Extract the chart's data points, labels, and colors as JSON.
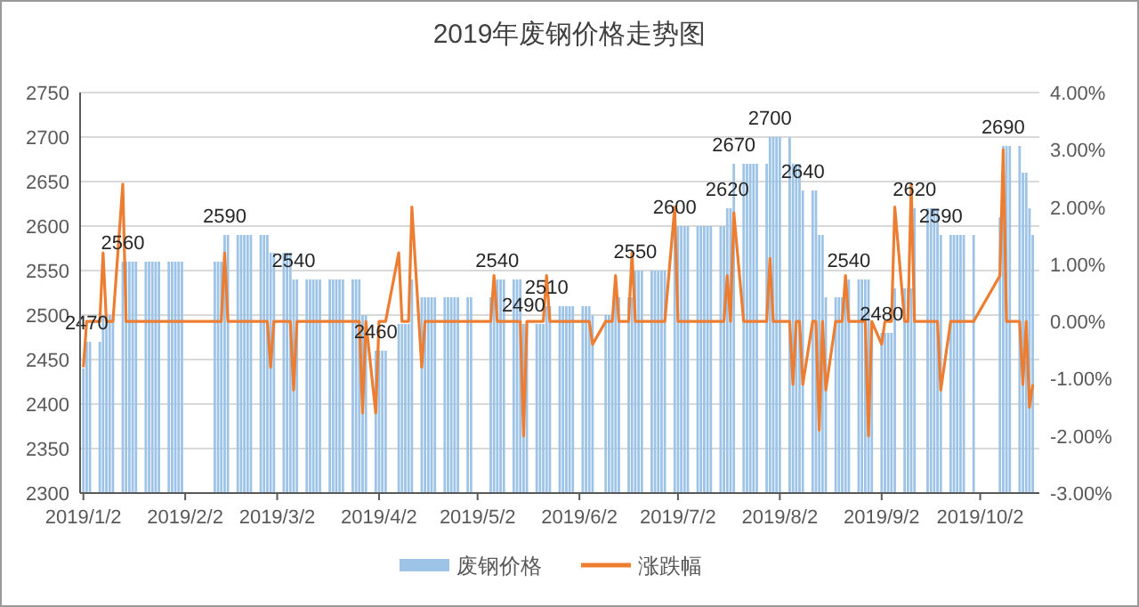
{
  "chart_data": {
    "type": "bar",
    "title": "2019年废钢价格走势图",
    "x": [
      "2019-01-02",
      "2019-01-03",
      "2019-01-04",
      "2019-01-07",
      "2019-01-08",
      "2019-01-09",
      "2019-01-10",
      "2019-01-11",
      "2019-01-14",
      "2019-01-15",
      "2019-01-16",
      "2019-01-17",
      "2019-01-18",
      "2019-01-21",
      "2019-01-22",
      "2019-01-23",
      "2019-01-24",
      "2019-01-25",
      "2019-01-28",
      "2019-01-29",
      "2019-01-30",
      "2019-01-31",
      "2019-02-01",
      "2019-02-11",
      "2019-02-12",
      "2019-02-13",
      "2019-02-14",
      "2019-02-15",
      "2019-02-18",
      "2019-02-19",
      "2019-02-20",
      "2019-02-21",
      "2019-02-22",
      "2019-02-25",
      "2019-02-26",
      "2019-02-27",
      "2019-02-28",
      "2019-03-01",
      "2019-03-04",
      "2019-03-05",
      "2019-03-06",
      "2019-03-07",
      "2019-03-08",
      "2019-03-11",
      "2019-03-12",
      "2019-03-13",
      "2019-03-14",
      "2019-03-15",
      "2019-03-18",
      "2019-03-19",
      "2019-03-20",
      "2019-03-21",
      "2019-03-22",
      "2019-03-25",
      "2019-03-26",
      "2019-03-27",
      "2019-03-28",
      "2019-03-29",
      "2019-04-01",
      "2019-04-02",
      "2019-04-03",
      "2019-04-04",
      "2019-04-08",
      "2019-04-09",
      "2019-04-10",
      "2019-04-11",
      "2019-04-12",
      "2019-04-15",
      "2019-04-16",
      "2019-04-17",
      "2019-04-18",
      "2019-04-19",
      "2019-04-22",
      "2019-04-23",
      "2019-04-24",
      "2019-04-25",
      "2019-04-26",
      "2019-04-29",
      "2019-04-30",
      "2019-05-06",
      "2019-05-07",
      "2019-05-08",
      "2019-05-09",
      "2019-05-10",
      "2019-05-13",
      "2019-05-14",
      "2019-05-15",
      "2019-05-16",
      "2019-05-17",
      "2019-05-20",
      "2019-05-21",
      "2019-05-22",
      "2019-05-23",
      "2019-05-24",
      "2019-05-27",
      "2019-05-28",
      "2019-05-29",
      "2019-05-30",
      "2019-05-31",
      "2019-06-03",
      "2019-06-04",
      "2019-06-05",
      "2019-06-06",
      "2019-06-10",
      "2019-06-11",
      "2019-06-12",
      "2019-06-13",
      "2019-06-14",
      "2019-06-17",
      "2019-06-18",
      "2019-06-19",
      "2019-06-20",
      "2019-06-21",
      "2019-06-24",
      "2019-06-25",
      "2019-06-26",
      "2019-06-27",
      "2019-06-28",
      "2019-07-01",
      "2019-07-02",
      "2019-07-03",
      "2019-07-04",
      "2019-07-05",
      "2019-07-08",
      "2019-07-09",
      "2019-07-10",
      "2019-07-11",
      "2019-07-12",
      "2019-07-15",
      "2019-07-16",
      "2019-07-17",
      "2019-07-18",
      "2019-07-19",
      "2019-07-22",
      "2019-07-23",
      "2019-07-24",
      "2019-07-25",
      "2019-07-26",
      "2019-07-29",
      "2019-07-30",
      "2019-07-31",
      "2019-08-01",
      "2019-08-02",
      "2019-08-05",
      "2019-08-06",
      "2019-08-07",
      "2019-08-08",
      "2019-08-09",
      "2019-08-12",
      "2019-08-13",
      "2019-08-14",
      "2019-08-15",
      "2019-08-16",
      "2019-08-19",
      "2019-08-20",
      "2019-08-21",
      "2019-08-22",
      "2019-08-23",
      "2019-08-26",
      "2019-08-27",
      "2019-08-28",
      "2019-08-29",
      "2019-08-30",
      "2019-09-02",
      "2019-09-03",
      "2019-09-04",
      "2019-09-05",
      "2019-09-06",
      "2019-09-09",
      "2019-09-10",
      "2019-09-11",
      "2019-09-12",
      "2019-09-16",
      "2019-09-17",
      "2019-09-18",
      "2019-09-19",
      "2019-09-20",
      "2019-09-23",
      "2019-09-24",
      "2019-09-25",
      "2019-09-26",
      "2019-09-27",
      "2019-09-30",
      "2019-10-08",
      "2019-10-09",
      "2019-10-10",
      "2019-10-11",
      "2019-10-14",
      "2019-10-15",
      "2019-10-16",
      "2019-10-17",
      "2019-10-18"
    ],
    "series": [
      {
        "name": "废钢价格",
        "type": "bar",
        "color": "#9dc3e6",
        "values": [
          2440,
          2470,
          2470,
          2470,
          2500,
          2500,
          2500,
          2500,
          2560,
          2560,
          2560,
          2560,
          2560,
          2560,
          2560,
          2560,
          2560,
          2560,
          2560,
          2560,
          2560,
          2560,
          2560,
          2560,
          2560,
          2560,
          2590,
          2590,
          2590,
          2590,
          2590,
          2590,
          2590,
          2590,
          2590,
          2590,
          2570,
          2570,
          2570,
          2570,
          2570,
          2540,
          2540,
          2540,
          2540,
          2540,
          2540,
          2540,
          2540,
          2540,
          2540,
          2540,
          2540,
          2540,
          2540,
          2540,
          2500,
          2500,
          2460,
          2460,
          2460,
          2460,
          2490,
          2490,
          2490,
          2490,
          2540,
          2520,
          2520,
          2520,
          2520,
          2520,
          2520,
          2520,
          2520,
          2520,
          2520,
          2520,
          2520,
          2520,
          2520,
          2540,
          2540,
          2540,
          2540,
          2540,
          2540,
          2490,
          2490,
          2490,
          2490,
          2490,
          2510,
          2510,
          2510,
          2510,
          2510,
          2510,
          2510,
          2510,
          2510,
          2510,
          2500,
          2500,
          2500,
          2500,
          2520,
          2520,
          2520,
          2520,
          2550,
          2550,
          2550,
          2550,
          2550,
          2550,
          2550,
          2550,
          2600,
          2600,
          2600,
          2600,
          2600,
          2600,
          2600,
          2600,
          2600,
          2600,
          2600,
          2600,
          2620,
          2620,
          2670,
          2670,
          2670,
          2670,
          2670,
          2670,
          2670,
          2700,
          2700,
          2700,
          2700,
          2700,
          2670,
          2670,
          2670,
          2640,
          2640,
          2640,
          2590,
          2590,
          2520,
          2520,
          2520,
          2520,
          2520,
          2540,
          2540,
          2540,
          2540,
          2540,
          2490,
          2480,
          2480,
          2480,
          2480,
          2530,
          2530,
          2530,
          2530,
          2620,
          2620,
          2620,
          2620,
          2620,
          2590,
          2590,
          2590,
          2590,
          2590,
          2590,
          2590,
          2610,
          2690,
          2690,
          2690,
          2690,
          2660,
          2660,
          2620,
          2590
        ],
        "value_labels": [
          null,
          "2470",
          null,
          null,
          null,
          null,
          null,
          null,
          "2560",
          null,
          null,
          null,
          null,
          null,
          null,
          null,
          null,
          null,
          null,
          null,
          null,
          null,
          null,
          null,
          null,
          null,
          "2590",
          null,
          null,
          null,
          null,
          null,
          null,
          null,
          null,
          null,
          null,
          null,
          null,
          null,
          null,
          "2540",
          null,
          null,
          null,
          null,
          null,
          null,
          null,
          null,
          null,
          null,
          null,
          null,
          null,
          null,
          null,
          null,
          "2460",
          null,
          null,
          null,
          null,
          null,
          null,
          null,
          null,
          null,
          null,
          null,
          null,
          null,
          null,
          null,
          null,
          null,
          null,
          null,
          null,
          null,
          null,
          "2540",
          null,
          null,
          null,
          null,
          null,
          "2490",
          null,
          null,
          null,
          null,
          "2510",
          null,
          null,
          null,
          null,
          null,
          null,
          null,
          null,
          null,
          null,
          null,
          null,
          null,
          null,
          null,
          null,
          null,
          "2550",
          null,
          null,
          null,
          null,
          null,
          null,
          null,
          "2600",
          null,
          null,
          null,
          null,
          null,
          null,
          null,
          null,
          null,
          null,
          null,
          "2620",
          null,
          "2670",
          null,
          null,
          null,
          null,
          null,
          null,
          "2700",
          null,
          null,
          null,
          null,
          null,
          null,
          null,
          "2640",
          null,
          null,
          null,
          null,
          null,
          null,
          null,
          null,
          null,
          "2540",
          null,
          null,
          null,
          null,
          null,
          "2480",
          null,
          null,
          null,
          null,
          null,
          null,
          null,
          "2620",
          null,
          null,
          null,
          null,
          "2590",
          null,
          null,
          null,
          null,
          null,
          null,
          null,
          "2690",
          null,
          null,
          null,
          null,
          null,
          null,
          null
        ]
      },
      {
        "name": "涨跌幅",
        "type": "line",
        "axis": "y2",
        "color": "#ed7d31",
        "values": [
          -0.8,
          0,
          0,
          0,
          1.2,
          0,
          0,
          0,
          2.4,
          0,
          0,
          0,
          0,
          0,
          0,
          0,
          0,
          0,
          0,
          0,
          0,
          0,
          0,
          0,
          0,
          0,
          1.2,
          0,
          0,
          0,
          0,
          0,
          0,
          0,
          0,
          0,
          -0.8,
          0,
          0,
          0,
          0,
          -1.2,
          0,
          0,
          0,
          0,
          0,
          0,
          0,
          0,
          0,
          0,
          0,
          0,
          0,
          0,
          -1.6,
          0,
          -1.6,
          0,
          0,
          0,
          1.2,
          0,
          0,
          0,
          2.0,
          -0.8,
          0,
          0,
          0,
          0,
          0,
          0,
          0,
          0,
          0,
          0,
          0,
          0,
          0.8,
          0,
          0,
          0,
          0,
          0,
          0,
          -2.0,
          0,
          0,
          0,
          0,
          0.8,
          0,
          0,
          0,
          0,
          0,
          0,
          0,
          0,
          0,
          -0.4,
          0,
          0,
          0,
          0.8,
          0,
          0,
          1.2,
          0,
          0,
          0,
          0,
          0,
          0,
          0,
          0,
          2.0,
          0,
          0,
          0,
          0,
          0,
          0,
          0,
          0,
          0,
          0,
          0,
          0.8,
          0,
          1.9,
          0,
          0,
          0,
          0,
          0,
          0,
          1.1,
          0,
          0,
          0,
          0,
          -1.1,
          0,
          0,
          -1.1,
          0,
          0,
          -1.9,
          0,
          -1.2,
          0,
          0,
          0,
          0.8,
          0,
          0,
          0,
          0,
          -2.0,
          0,
          -0.4,
          0,
          0,
          0,
          2.0,
          0,
          0,
          2.4,
          0,
          0,
          0,
          0,
          0,
          -1.2,
          0,
          0,
          0,
          0,
          0,
          0,
          0.8,
          3.0,
          0,
          0,
          0,
          -1.1,
          0,
          -1.5,
          -1.1
        ]
      }
    ],
    "xlim": [
      "2019-01-01",
      "2019-10-20"
    ],
    "xticks": [
      {
        "value": "2019-01-02",
        "label": "2019/1/2"
      },
      {
        "value": "2019-02-02",
        "label": "2019/2/2"
      },
      {
        "value": "2019-03-02",
        "label": "2019/3/2"
      },
      {
        "value": "2019-04-02",
        "label": "2019/4/2"
      },
      {
        "value": "2019-05-02",
        "label": "2019/5/2"
      },
      {
        "value": "2019-06-02",
        "label": "2019/6/2"
      },
      {
        "value": "2019-07-02",
        "label": "2019/7/2"
      },
      {
        "value": "2019-08-02",
        "label": "2019/8/2"
      },
      {
        "value": "2019-09-02",
        "label": "2019/9/2"
      },
      {
        "value": "2019-10-02",
        "label": "2019/10/2"
      }
    ],
    "ylim": [
      2300,
      2750
    ],
    "yticks": [
      2300,
      2350,
      2400,
      2450,
      2500,
      2550,
      2600,
      2650,
      2700,
      2750
    ],
    "y2lim": [
      -3,
      4
    ],
    "y2ticks": [
      {
        "value": -3,
        "label": "-3.00%"
      },
      {
        "value": -2,
        "label": "-2.00%"
      },
      {
        "value": -1,
        "label": "-1.00%"
      },
      {
        "value": 0,
        "label": "0.00%"
      },
      {
        "value": 1,
        "label": "1.00%"
      },
      {
        "value": 2,
        "label": "2.00%"
      },
      {
        "value": 3,
        "label": "3.00%"
      },
      {
        "value": 4,
        "label": "4.00%"
      }
    ],
    "grid": "y",
    "legend": "bottom"
  }
}
